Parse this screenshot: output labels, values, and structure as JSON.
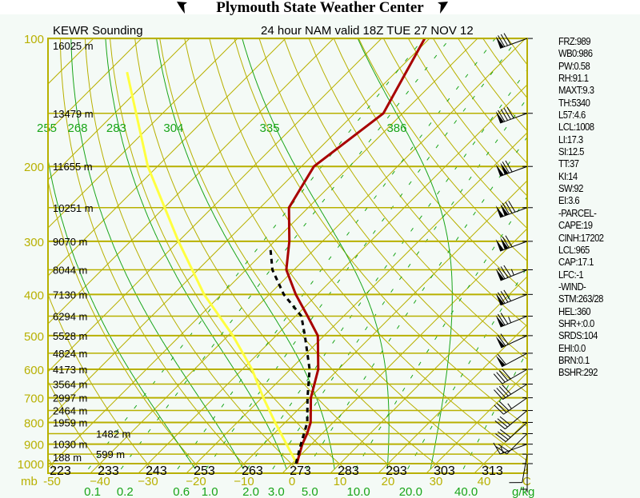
{
  "header": {
    "title": "Plymouth State Weather Center"
  },
  "chart_title_left": "KEWR Sounding",
  "chart_title_right": "24 hour NAM valid 18Z TUE 27 NOV 12",
  "stats": [
    "FRZ:989",
    "WB0:986",
    "PW:0.58",
    "RH:91.1",
    "MAXT:9.3",
    "TH:5340",
    "L57:4.6",
    "LCL:1008",
    "LI:17.3",
    "SI:12.5",
    "TT:37",
    "KI:14",
    "SW:92",
    "EI:3.6",
    "-PARCEL-",
    "CAPE:19",
    "CINH:17202",
    "LCL:965",
    "CAP:17.1",
    "LFC:-1",
    "-WIND-",
    "STM:263/28",
    "HEL:360",
    "SHR+:0.0",
    "SRDS:104",
    "EHI:0.0",
    "BRN:0.1",
    "BSHR:292"
  ],
  "colors": {
    "temperature": "#a80000",
    "dewpoint": "#000000",
    "parcel": "#ffff40",
    "grid_yellow": "#b8b000",
    "grid_green": "#19a519"
  },
  "chart_data": {
    "type": "line",
    "subtype": "skew-t log-p",
    "pressure_labels": [
      "100",
      "200",
      "300",
      "400",
      "500",
      "600",
      "700",
      "800",
      "900",
      "1000"
    ],
    "pressure_levels": [
      100,
      150,
      200,
      250,
      300,
      350,
      400,
      450,
      500,
      550,
      600,
      650,
      700,
      750,
      800,
      850,
      900,
      950,
      1000
    ],
    "height_labels": [
      "16025 m",
      "13479 m",
      "11655 m",
      "10251 m",
      "9070 m",
      "8044 m",
      "7130 m",
      "6294 m",
      "5528 m",
      "4824 m",
      "4173 m",
      "3564 m",
      "2997 m",
      "2464 m",
      "1959 m",
      "1482 m",
      "1030 m",
      "599 m",
      "188 m"
    ],
    "temp_axis_unit": "C",
    "pressure_axis_unit": "mb",
    "temp_ticks": [
      -50,
      -40,
      -30,
      -20,
      -10,
      0,
      10,
      20,
      30,
      40
    ],
    "temp_tick_labels": [
      "-50",
      "−40",
      "−30",
      "−20",
      "−10",
      "0",
      "10",
      "20",
      "30",
      "40"
    ],
    "dry_adiabat_labels": [
      "223",
      "233",
      "243",
      "253",
      "263",
      "273",
      "283",
      "293",
      "303",
      "313"
    ],
    "moist_adiabat_labels": [
      "255",
      "268",
      "283",
      "304",
      "335",
      "386"
    ],
    "moist_adiabat_start_temp_c": [
      -19,
      -9,
      0,
      10,
      21,
      30
    ],
    "mixing_ratio_unit": "g/kg",
    "mixing_ratio_labels": [
      "0.1",
      "0.2",
      "0.6",
      "1.0",
      "2.0",
      "3.0",
      "5.0",
      "10.0",
      "20.0",
      "40.0"
    ],
    "mixing_ratios": [
      0.1,
      0.2,
      0.6,
      1.0,
      2.0,
      3.0,
      5.0,
      10.0,
      20.0,
      40.0
    ],
    "series": [
      {
        "name": "temperature",
        "pressure": [
          1000,
          900,
          850,
          800,
          700,
          600,
          500,
          450,
          400,
          350,
          300,
          250,
          200,
          150,
          100
        ],
        "values": [
          1.0,
          -1.9,
          -3.1,
          -4.7,
          -9.8,
          -14.2,
          -21.3,
          -27.5,
          -34.5,
          -41.6,
          -46.9,
          -54.0,
          -57.4,
          -54.0,
          -61.0
        ]
      },
      {
        "name": "dewpoint",
        "pressure": [
          1000,
          900,
          800,
          700,
          600,
          500,
          450,
          400,
          350,
          310
        ],
        "values": [
          0.8,
          -2.2,
          -5.4,
          -10.5,
          -16.0,
          -24.0,
          -28.8,
          -37.0,
          -44.5,
          -49.6
        ]
      },
      {
        "name": "parcel",
        "pressure": [
          1000,
          900,
          800,
          700,
          600,
          500,
          400,
          300,
          200,
          120
        ],
        "values": [
          1.0,
          -5.2,
          -12.1,
          -19.7,
          -28.0,
          -39.0,
          -53.6,
          -70.0,
          -92.0,
          -116.0
        ]
      }
    ],
    "winds": [
      {
        "p": 100,
        "dir": 250,
        "kt": 80
      },
      {
        "p": 150,
        "dir": 250,
        "kt": 90
      },
      {
        "p": 200,
        "dir": 250,
        "kt": 120
      },
      {
        "p": 250,
        "dir": 250,
        "kt": 130
      },
      {
        "p": 300,
        "dir": 250,
        "kt": 120
      },
      {
        "p": 350,
        "dir": 248,
        "kt": 85
      },
      {
        "p": 400,
        "dir": 248,
        "kt": 80
      },
      {
        "p": 450,
        "dir": 248,
        "kt": 75
      },
      {
        "p": 500,
        "dir": 245,
        "kt": 70
      },
      {
        "p": 550,
        "dir": 242,
        "kt": 60
      },
      {
        "p": 600,
        "dir": 240,
        "kt": 40
      },
      {
        "p": 650,
        "dir": 238,
        "kt": 40
      },
      {
        "p": 700,
        "dir": 235,
        "kt": 35
      },
      {
        "p": 750,
        "dir": 230,
        "kt": 30
      },
      {
        "p": 800,
        "dir": 228,
        "kt": 30
      },
      {
        "p": 850,
        "dir": 225,
        "kt": 20
      },
      {
        "p": 900,
        "dir": 250,
        "kt": 15
      },
      {
        "p": 950,
        "dir": 190,
        "kt": 10
      },
      {
        "p": 1000,
        "dir": 180,
        "kt": 5
      }
    ]
  }
}
